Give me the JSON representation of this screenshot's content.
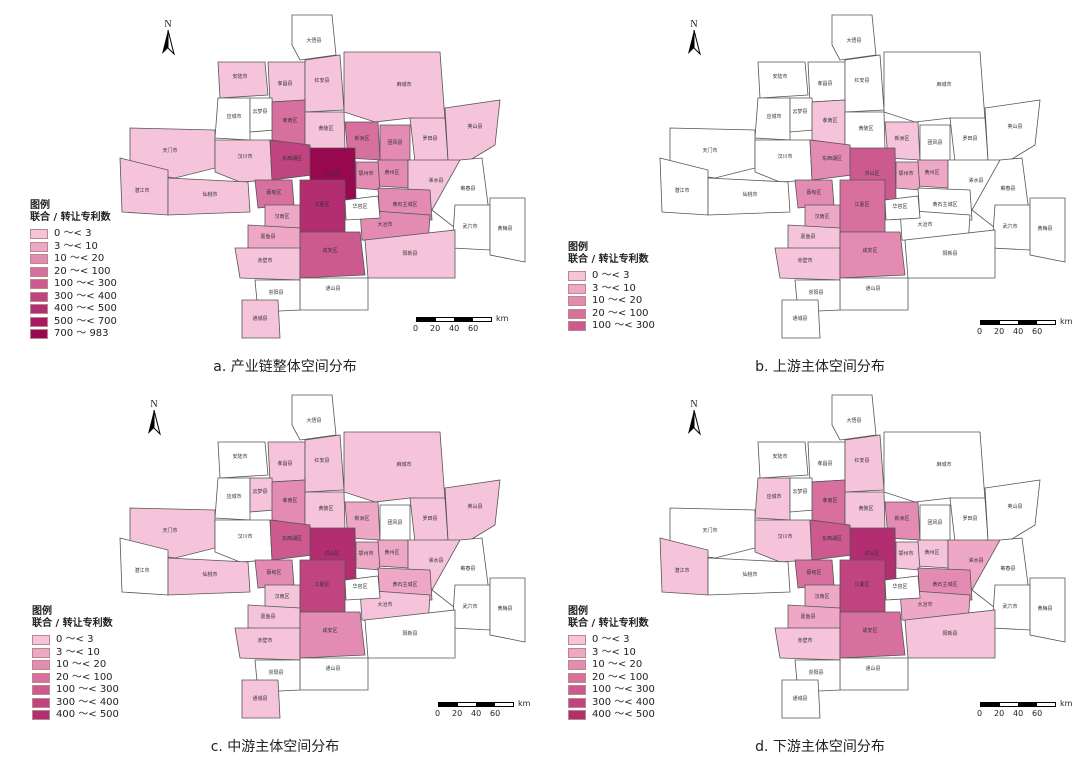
{
  "colors": {
    "c0": "#f6c4da",
    "c1": "#eea8c6",
    "c2": "#e48bb3",
    "c3": "#d8709f",
    "c4": "#cc5a8f",
    "c5": "#c0447f",
    "c6": "#b32e70",
    "c7": "#a61a61",
    "c8": "#98084f",
    "none": "#ffffff",
    "border": "#555555"
  },
  "north_label": "N",
  "legend_title": "图例",
  "legend_subtitle": "联合 / 转让专利数",
  "scale_unit": "km",
  "scale_ticks": [
    "0",
    "20",
    "40",
    "60"
  ],
  "panels": [
    {
      "caption": "a. 产业链整体空间分布",
      "legend": [
        "0 ～< 3",
        "3 ～< 10",
        "10 ～< 20",
        "20 ～< 100",
        "100 ～< 300",
        "300 ～< 400",
        "400 ～< 500",
        "500 ～< 700",
        "700 ～ 983"
      ],
      "legend_colors": [
        "c0",
        "c1",
        "c2",
        "c3",
        "c4",
        "c5",
        "c6",
        "c7",
        "c8"
      ],
      "fills": {
        "dawu": "none",
        "anlu": "c0",
        "xiaochang": "c0",
        "hongan": "c0",
        "macheng": "c0",
        "yingcheng": "none",
        "yunmeng": "none",
        "xiaonan": "c3",
        "huangpi": "c0",
        "xinzhou": "c3",
        "luotian": "c0",
        "yingshan": "c0",
        "tianmen": "c0",
        "hanchuan": "c0",
        "dongxihu": "c5",
        "center": "c8",
        "tuanfeng": "c2",
        "huangzhou": "c2",
        "xishui": "c0",
        "qianjiang": "c0",
        "xiantao": "c0",
        "caidian": "c3",
        "hannan": "c1",
        "jiangxia": "c6",
        "ezhou": "c2",
        "huangshi": "c2",
        "qichun": "none",
        "wuxue": "none",
        "huangmei": "none",
        "jiayu": "c1",
        "chibi": "c0",
        "xianan": "c4",
        "daye": "c2",
        "yangxin": "c0",
        "tongshan": "none",
        "chongyang": "none",
        "tongcheng": "c0",
        "honghu": "none"
      }
    },
    {
      "caption": "b. 上游主体空间分布",
      "legend": [
        "0 ～< 3",
        "3 ～< 10",
        "10 ～< 20",
        "20 ～< 100",
        "100 ～< 300"
      ],
      "legend_colors": [
        "c0",
        "c1",
        "c2",
        "c3",
        "c4"
      ],
      "fills": {
        "dawu": "none",
        "anlu": "none",
        "xiaochang": "none",
        "hongan": "none",
        "macheng": "none",
        "yingcheng": "none",
        "yunmeng": "none",
        "xiaonan": "c0",
        "huangpi": "none",
        "xinzhou": "c0",
        "luotian": "none",
        "yingshan": "none",
        "tianmen": "none",
        "hanchuan": "none",
        "dongxihu": "c2",
        "center": "c4",
        "tuanfeng": "none",
        "huangzhou": "c1",
        "xishui": "none",
        "qianjiang": "none",
        "xiantao": "none",
        "caidian": "c2",
        "hannan": "c1",
        "jiangxia": "c3",
        "ezhou": "c1",
        "huangshi": "none",
        "qichun": "none",
        "wuxue": "none",
        "huangmei": "none",
        "jiayu": "c0",
        "chibi": "c0",
        "xianan": "c2",
        "daye": "none",
        "yangxin": "none",
        "tongshan": "none",
        "chongyang": "none",
        "tongcheng": "none",
        "honghu": "none"
      }
    },
    {
      "caption": "c. 中游主体空间分布",
      "legend": [
        "0 ～< 3",
        "3 ～< 10",
        "10 ～< 20",
        "20 ～< 100",
        "100 ～< 300",
        "300 ～< 400",
        "400 ～< 500"
      ],
      "legend_colors": [
        "c0",
        "c1",
        "c2",
        "c3",
        "c4",
        "c5",
        "c6"
      ],
      "fills": {
        "dawu": "none",
        "anlu": "none",
        "xiaochang": "c0",
        "hongan": "c0",
        "macheng": "c0",
        "yingcheng": "none",
        "yunmeng": "c0",
        "xiaonan": "c2",
        "huangpi": "c0",
        "xinzhou": "c1",
        "luotian": "c0",
        "yingshan": "c0",
        "tianmen": "c0",
        "hanchuan": "none",
        "dongxihu": "c4",
        "center": "c6",
        "tuanfeng": "none",
        "huangzhou": "c1",
        "xishui": "c0",
        "qianjiang": "none",
        "xiantao": "c0",
        "caidian": "c2",
        "hannan": "c0",
        "jiangxia": "c5",
        "ezhou": "c1",
        "huangshi": "c1",
        "qichun": "none",
        "wuxue": "none",
        "huangmei": "none",
        "jiayu": "c0",
        "chibi": "c0",
        "xianan": "c2",
        "daye": "c0",
        "yangxin": "none",
        "tongshan": "none",
        "chongyang": "none",
        "tongcheng": "c0",
        "honghu": "none"
      }
    },
    {
      "caption": "d. 下游主体空间分布",
      "legend": [
        "0 ～< 3",
        "3 ～< 10",
        "10 ～< 20",
        "20 ～< 100",
        "100 ～< 300",
        "300 ～< 400",
        "400 ～< 500"
      ],
      "legend_colors": [
        "c0",
        "c1",
        "c2",
        "c3",
        "c4",
        "c5",
        "c6"
      ],
      "fills": {
        "dawu": "none",
        "anlu": "none",
        "xiaochang": "none",
        "hongan": "c0",
        "macheng": "none",
        "yingcheng": "c0",
        "yunmeng": "none",
        "xiaonan": "c3",
        "huangpi": "c0",
        "xinzhou": "c2",
        "luotian": "none",
        "yingshan": "none",
        "tianmen": "none",
        "hanchuan": "c0",
        "dongxihu": "c4",
        "center": "c6",
        "tuanfeng": "none",
        "huangzhou": "c0",
        "xishui": "c1",
        "qianjiang": "c0",
        "xiantao": "none",
        "caidian": "c3",
        "hannan": "c1",
        "jiangxia": "c5",
        "ezhou": "c0",
        "huangshi": "c2",
        "qichun": "none",
        "wuxue": "none",
        "huangmei": "none",
        "jiayu": "c1",
        "chibi": "c0",
        "xianan": "c3",
        "daye": "c1",
        "yangxin": "c0",
        "tongshan": "none",
        "chongyang": "none",
        "tongcheng": "none",
        "honghu": "none"
      }
    }
  ],
  "regions": [
    {
      "id": "dawu",
      "label": "大悟县"
    },
    {
      "id": "anlu",
      "label": "安陆市"
    },
    {
      "id": "xiaochang",
      "label": "孝昌县"
    },
    {
      "id": "hongan",
      "label": "红安县"
    },
    {
      "id": "macheng",
      "label": "麻城市"
    },
    {
      "id": "yingcheng",
      "label": "应城市"
    },
    {
      "id": "yunmeng",
      "label": "云梦县"
    },
    {
      "id": "xiaonan",
      "label": "孝南区"
    },
    {
      "id": "huangpi",
      "label": "黄陂区"
    },
    {
      "id": "xinzhou",
      "label": "新洲区"
    },
    {
      "id": "luotian",
      "label": "罗田县"
    },
    {
      "id": "yingshan",
      "label": "英山县"
    },
    {
      "id": "tianmen",
      "label": "天门市"
    },
    {
      "id": "hanchuan",
      "label": "汉川市"
    },
    {
      "id": "dongxihu",
      "label": "东西湖区"
    },
    {
      "id": "center",
      "label": "洪山区"
    },
    {
      "id": "tuanfeng",
      "label": "团风县"
    },
    {
      "id": "huangzhou",
      "label": "黄州区"
    },
    {
      "id": "xishui",
      "label": "浠水县"
    },
    {
      "id": "qianjiang",
      "label": "潜江市"
    },
    {
      "id": "xiantao",
      "label": "仙桃市"
    },
    {
      "id": "caidian",
      "label": "蔡甸区"
    },
    {
      "id": "hannan",
      "label": "汉南区"
    },
    {
      "id": "jiangxia",
      "label": "江夏区"
    },
    {
      "id": "ezhou",
      "label": "鄂州市"
    },
    {
      "id": "huangshi",
      "label": "黄石主城区"
    },
    {
      "id": "qichun",
      "label": "蕲春县"
    },
    {
      "id": "wuxue",
      "label": "武穴市"
    },
    {
      "id": "huangmei",
      "label": "黄梅县"
    },
    {
      "id": "jiayu",
      "label": "嘉鱼县"
    },
    {
      "id": "chibi",
      "label": "赤壁市"
    },
    {
      "id": "xianan",
      "label": "咸安区"
    },
    {
      "id": "daye",
      "label": "大冶市"
    },
    {
      "id": "yangxin",
      "label": "阳新县"
    },
    {
      "id": "tongshan",
      "label": "通山县"
    },
    {
      "id": "chongyang",
      "label": "崇阳县"
    },
    {
      "id": "tongcheng",
      "label": "通城县"
    },
    {
      "id": "honghu",
      "label": "华容区"
    }
  ]
}
